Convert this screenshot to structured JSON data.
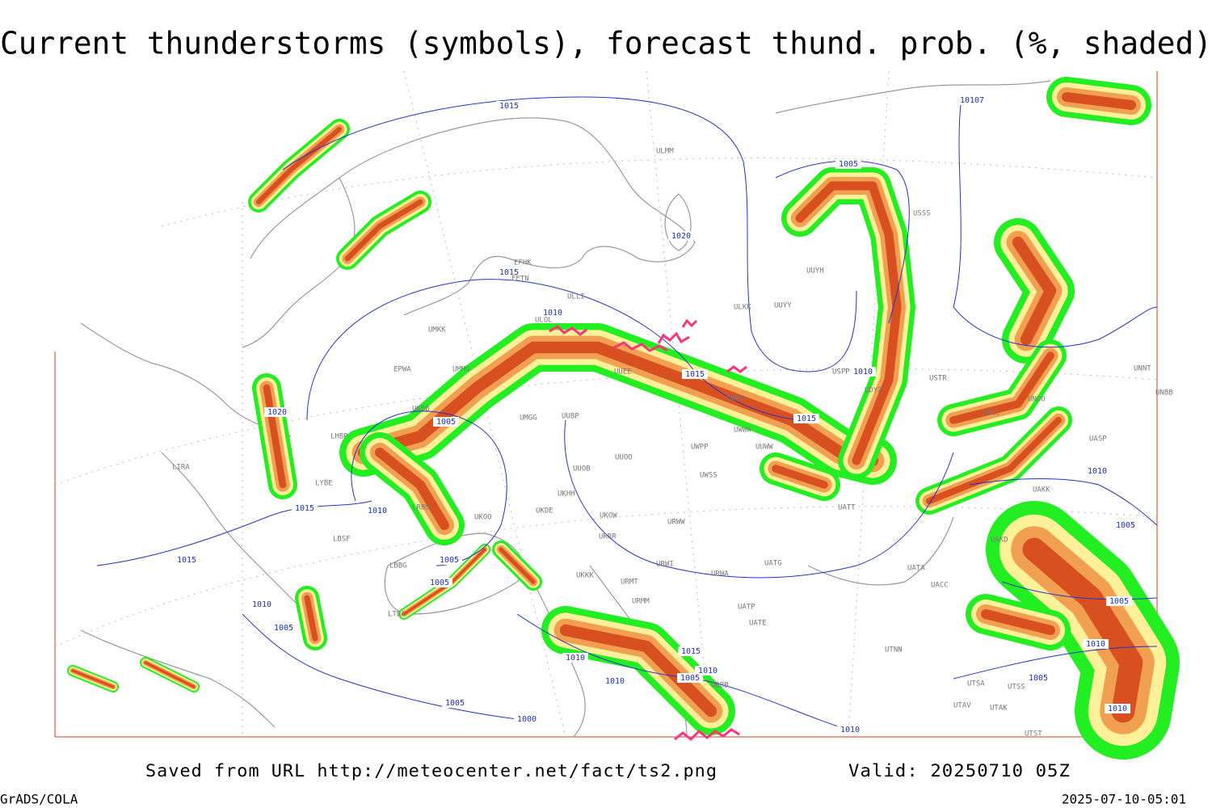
{
  "header": {
    "title": "Current thunderstorms (symbols), forecast thund. prob. (%, shaded)"
  },
  "footer": {
    "source": "Saved from URL http://meteocenter.net/fact/ts2.png",
    "valid": "Valid: 20250710 05Z",
    "credit": "GrADS/COLA",
    "timestamp": "2025-07-10-05:01"
  },
  "isobar_labels": [
    "1015",
    "1020",
    "1015",
    "1010",
    "1005",
    "10107",
    "1010",
    "1015",
    "1015",
    "1020",
    "1005",
    "1010",
    "1015",
    "1015",
    "1005",
    "1005",
    "1010",
    "1005",
    "1010",
    "1015",
    "1010",
    "1005",
    "1000",
    "1005",
    "1010",
    "1010",
    "1005",
    "1005",
    "1010",
    "1010",
    "1005",
    "1010"
  ],
  "stations": [
    "ULMM",
    "EFHK",
    "EETN",
    "ULLI",
    "ULOL",
    "UMKK",
    "EPWA",
    "UMMG",
    "UUEE",
    "ULKK",
    "UUYY",
    "UUYH",
    "USSS",
    "USPP",
    "USTR",
    "UNNT",
    "UNBB",
    "UNOO",
    "UACC",
    "UASP",
    "UAKK",
    "UATT",
    "UATG",
    "UATA",
    "UACC",
    "UTNN",
    "UTSA",
    "UTSS",
    "UTAV",
    "UTAK",
    "UTST",
    "URWW",
    "URWA",
    "URWI",
    "URMT",
    "URMM",
    "URRR",
    "UKOW",
    "UUOO",
    "UUWW",
    "UWPP",
    "UWSS",
    "UWKD",
    "UWWW",
    "UKBB",
    "UKKK",
    "UKHH",
    "UKDE",
    "UKOO",
    "UMGG",
    "UUBP",
    "UUOB",
    "LRBS",
    "LBSF",
    "LBBG",
    "LYBE",
    "LHBP",
    "LIRA",
    "LTBA",
    "UDYZ",
    "UBBB",
    "UATE",
    "UAKD",
    "UATP"
  ]
}
